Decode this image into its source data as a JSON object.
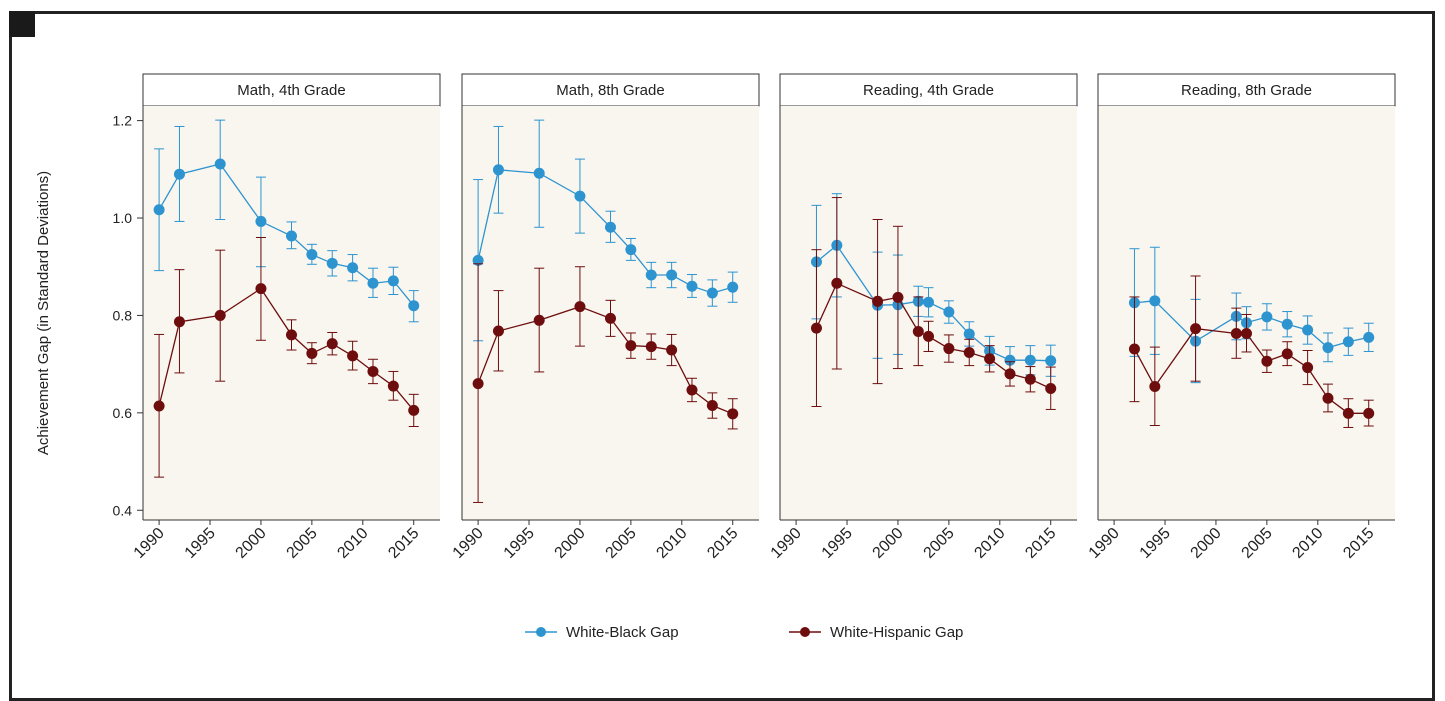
{
  "chart_data": {
    "type": "line",
    "ylabel": "Achievement Gap (in Standard Deviations)",
    "ylim": [
      0.38,
      1.23
    ],
    "yticks": [
      0.4,
      0.6,
      0.8,
      1.0,
      1.2
    ],
    "ytick_labels": [
      "0.4",
      "0.6",
      "0.8",
      "1.0",
      "1.2"
    ],
    "xticks": [
      1990,
      1995,
      2000,
      2005,
      2010,
      2015
    ],
    "xtick_labels": [
      "1990",
      "1995",
      "2000",
      "2005",
      "2010",
      "2015"
    ],
    "xlim": [
      1989.5,
      2016.5
    ],
    "legend_position": "bottom",
    "colors": {
      "White-Black Gap": "#2e94d0",
      "White-Hispanic Gap": "#6e0d0d",
      "panel_bg": "#f8f6ef"
    },
    "panels": [
      {
        "title": "Math, 4th Grade",
        "series": [
          {
            "name": "White-Black Gap",
            "points": [
              {
                "x": 1990,
                "y": 1.017,
                "lo": 0.892,
                "hi": 1.142
              },
              {
                "x": 1992,
                "y": 1.09,
                "lo": 0.993,
                "hi": 1.188
              },
              {
                "x": 1996,
                "y": 1.111,
                "lo": 0.997,
                "hi": 1.201
              },
              {
                "x": 2000,
                "y": 0.993,
                "lo": 0.9,
                "hi": 1.084
              },
              {
                "x": 2003,
                "y": 0.963,
                "lo": 0.937,
                "hi": 0.992
              },
              {
                "x": 2005,
                "y": 0.925,
                "lo": 0.905,
                "hi": 0.946
              },
              {
                "x": 2007,
                "y": 0.907,
                "lo": 0.881,
                "hi": 0.933
              },
              {
                "x": 2009,
                "y": 0.898,
                "lo": 0.871,
                "hi": 0.925
              },
              {
                "x": 2011,
                "y": 0.866,
                "lo": 0.837,
                "hi": 0.897
              },
              {
                "x": 2013,
                "y": 0.871,
                "lo": 0.843,
                "hi": 0.899
              },
              {
                "x": 2015,
                "y": 0.82,
                "lo": 0.787,
                "hi": 0.851
              }
            ]
          },
          {
            "name": "White-Hispanic Gap",
            "points": [
              {
                "x": 1990,
                "y": 0.614,
                "lo": 0.468,
                "hi": 0.761
              },
              {
                "x": 1992,
                "y": 0.787,
                "lo": 0.682,
                "hi": 0.894
              },
              {
                "x": 1996,
                "y": 0.8,
                "lo": 0.665,
                "hi": 0.934
              },
              {
                "x": 2000,
                "y": 0.855,
                "lo": 0.749,
                "hi": 0.96
              },
              {
                "x": 2003,
                "y": 0.76,
                "lo": 0.729,
                "hi": 0.791
              },
              {
                "x": 2005,
                "y": 0.722,
                "lo": 0.701,
                "hi": 0.744
              },
              {
                "x": 2007,
                "y": 0.742,
                "lo": 0.719,
                "hi": 0.765
              },
              {
                "x": 2009,
                "y": 0.717,
                "lo": 0.688,
                "hi": 0.747
              },
              {
                "x": 2011,
                "y": 0.685,
                "lo": 0.66,
                "hi": 0.71
              },
              {
                "x": 2013,
                "y": 0.655,
                "lo": 0.626,
                "hi": 0.685
              },
              {
                "x": 2015,
                "y": 0.605,
                "lo": 0.572,
                "hi": 0.638
              }
            ]
          }
        ]
      },
      {
        "title": "Math, 8th Grade",
        "series": [
          {
            "name": "White-Black Gap",
            "points": [
              {
                "x": 1990,
                "y": 0.913,
                "lo": 0.748,
                "hi": 1.079
              },
              {
                "x": 1992,
                "y": 1.099,
                "lo": 1.01,
                "hi": 1.188
              },
              {
                "x": 1996,
                "y": 1.092,
                "lo": 0.981,
                "hi": 1.201
              },
              {
                "x": 2000,
                "y": 1.045,
                "lo": 0.969,
                "hi": 1.121
              },
              {
                "x": 2003,
                "y": 0.981,
                "lo": 0.95,
                "hi": 1.014
              },
              {
                "x": 2005,
                "y": 0.935,
                "lo": 0.913,
                "hi": 0.958
              },
              {
                "x": 2007,
                "y": 0.883,
                "lo": 0.857,
                "hi": 0.909
              },
              {
                "x": 2009,
                "y": 0.883,
                "lo": 0.857,
                "hi": 0.909
              },
              {
                "x": 2011,
                "y": 0.86,
                "lo": 0.837,
                "hi": 0.884
              },
              {
                "x": 2013,
                "y": 0.846,
                "lo": 0.819,
                "hi": 0.873
              },
              {
                "x": 2015,
                "y": 0.858,
                "lo": 0.827,
                "hi": 0.889
              }
            ]
          },
          {
            "name": "White-Hispanic Gap",
            "points": [
              {
                "x": 1990,
                "y": 0.66,
                "lo": 0.416,
                "hi": 0.906
              },
              {
                "x": 1992,
                "y": 0.768,
                "lo": 0.686,
                "hi": 0.851
              },
              {
                "x": 1996,
                "y": 0.79,
                "lo": 0.684,
                "hi": 0.897
              },
              {
                "x": 2000,
                "y": 0.818,
                "lo": 0.737,
                "hi": 0.9
              },
              {
                "x": 2003,
                "y": 0.794,
                "lo": 0.757,
                "hi": 0.831
              },
              {
                "x": 2005,
                "y": 0.738,
                "lo": 0.712,
                "hi": 0.764
              },
              {
                "x": 2007,
                "y": 0.736,
                "lo": 0.71,
                "hi": 0.762
              },
              {
                "x": 2009,
                "y": 0.729,
                "lo": 0.697,
                "hi": 0.761
              },
              {
                "x": 2011,
                "y": 0.647,
                "lo": 0.623,
                "hi": 0.671
              },
              {
                "x": 2013,
                "y": 0.615,
                "lo": 0.589,
                "hi": 0.641
              },
              {
                "x": 2015,
                "y": 0.598,
                "lo": 0.567,
                "hi": 0.629
              }
            ]
          }
        ]
      },
      {
        "title": "Reading, 4th Grade",
        "series": [
          {
            "name": "White-Black Gap",
            "points": [
              {
                "x": 1992,
                "y": 0.91,
                "lo": 0.793,
                "hi": 1.026
              },
              {
                "x": 1994,
                "y": 0.944,
                "lo": 0.838,
                "hi": 1.05
              },
              {
                "x": 1998,
                "y": 0.821,
                "lo": 0.712,
                "hi": 0.93
              },
              {
                "x": 2000,
                "y": 0.822,
                "lo": 0.72,
                "hi": 0.924
              },
              {
                "x": 2002,
                "y": 0.829,
                "lo": 0.798,
                "hi": 0.86
              },
              {
                "x": 2003,
                "y": 0.827,
                "lo": 0.797,
                "hi": 0.857
              },
              {
                "x": 2005,
                "y": 0.807,
                "lo": 0.784,
                "hi": 0.83
              },
              {
                "x": 2007,
                "y": 0.762,
                "lo": 0.737,
                "hi": 0.787
              },
              {
                "x": 2009,
                "y": 0.727,
                "lo": 0.698,
                "hi": 0.757
              },
              {
                "x": 2011,
                "y": 0.708,
                "lo": 0.68,
                "hi": 0.736
              },
              {
                "x": 2013,
                "y": 0.708,
                "lo": 0.678,
                "hi": 0.738
              },
              {
                "x": 2015,
                "y": 0.707,
                "lo": 0.675,
                "hi": 0.739
              }
            ]
          },
          {
            "name": "White-Hispanic Gap",
            "points": [
              {
                "x": 1992,
                "y": 0.774,
                "lo": 0.613,
                "hi": 0.935
              },
              {
                "x": 1994,
                "y": 0.866,
                "lo": 0.69,
                "hi": 1.042
              },
              {
                "x": 1998,
                "y": 0.829,
                "lo": 0.66,
                "hi": 0.997
              },
              {
                "x": 2000,
                "y": 0.837,
                "lo": 0.691,
                "hi": 0.983
              },
              {
                "x": 2002,
                "y": 0.767,
                "lo": 0.697,
                "hi": 0.838
              },
              {
                "x": 2003,
                "y": 0.757,
                "lo": 0.726,
                "hi": 0.788
              },
              {
                "x": 2005,
                "y": 0.732,
                "lo": 0.704,
                "hi": 0.76
              },
              {
                "x": 2007,
                "y": 0.724,
                "lo": 0.697,
                "hi": 0.751
              },
              {
                "x": 2009,
                "y": 0.711,
                "lo": 0.684,
                "hi": 0.738
              },
              {
                "x": 2011,
                "y": 0.68,
                "lo": 0.655,
                "hi": 0.705
              },
              {
                "x": 2013,
                "y": 0.669,
                "lo": 0.643,
                "hi": 0.695
              },
              {
                "x": 2015,
                "y": 0.65,
                "lo": 0.607,
                "hi": 0.694
              }
            ]
          }
        ]
      },
      {
        "title": "Reading, 8th Grade",
        "series": [
          {
            "name": "White-Black Gap",
            "points": [
              {
                "x": 1992,
                "y": 0.826,
                "lo": 0.716,
                "hi": 0.937
              },
              {
                "x": 1994,
                "y": 0.83,
                "lo": 0.72,
                "hi": 0.94
              },
              {
                "x": 1998,
                "y": 0.747,
                "lo": 0.662,
                "hi": 0.833
              },
              {
                "x": 2002,
                "y": 0.798,
                "lo": 0.75,
                "hi": 0.846
              },
              {
                "x": 2003,
                "y": 0.785,
                "lo": 0.752,
                "hi": 0.818
              },
              {
                "x": 2005,
                "y": 0.797,
                "lo": 0.77,
                "hi": 0.824
              },
              {
                "x": 2007,
                "y": 0.782,
                "lo": 0.756,
                "hi": 0.808
              },
              {
                "x": 2009,
                "y": 0.77,
                "lo": 0.741,
                "hi": 0.799
              },
              {
                "x": 2011,
                "y": 0.734,
                "lo": 0.705,
                "hi": 0.764
              },
              {
                "x": 2013,
                "y": 0.746,
                "lo": 0.718,
                "hi": 0.774
              },
              {
                "x": 2015,
                "y": 0.755,
                "lo": 0.726,
                "hi": 0.784
              }
            ]
          },
          {
            "name": "White-Hispanic Gap",
            "points": [
              {
                "x": 1992,
                "y": 0.731,
                "lo": 0.623,
                "hi": 0.838
              },
              {
                "x": 1994,
                "y": 0.654,
                "lo": 0.574,
                "hi": 0.735
              },
              {
                "x": 1998,
                "y": 0.773,
                "lo": 0.665,
                "hi": 0.881
              },
              {
                "x": 2002,
                "y": 0.763,
                "lo": 0.712,
                "hi": 0.815
              },
              {
                "x": 2003,
                "y": 0.763,
                "lo": 0.725,
                "hi": 0.802
              },
              {
                "x": 2005,
                "y": 0.706,
                "lo": 0.683,
                "hi": 0.729
              },
              {
                "x": 2007,
                "y": 0.721,
                "lo": 0.697,
                "hi": 0.746
              },
              {
                "x": 2009,
                "y": 0.693,
                "lo": 0.658,
                "hi": 0.728
              },
              {
                "x": 2011,
                "y": 0.63,
                "lo": 0.602,
                "hi": 0.659
              },
              {
                "x": 2013,
                "y": 0.599,
                "lo": 0.57,
                "hi": 0.629
              },
              {
                "x": 2015,
                "y": 0.599,
                "lo": 0.573,
                "hi": 0.626
              }
            ]
          }
        ]
      }
    ]
  }
}
